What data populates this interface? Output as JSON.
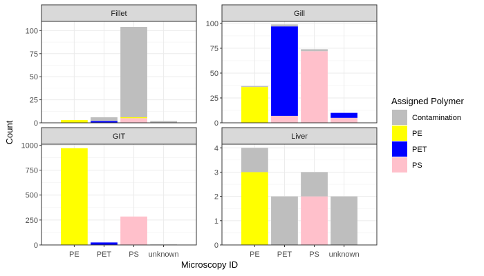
{
  "chart_data": {
    "type": "bar",
    "stacked": true,
    "facet_layout": "2x2",
    "shared_x": true,
    "grid": true,
    "xlabel": "Microscopy ID",
    "ylabel": "Count",
    "categories": [
      "PE",
      "PET",
      "PS",
      "unknown"
    ],
    "legend": {
      "title": "Assigned Polymer",
      "position": "right",
      "entries": [
        {
          "name": "Contamination",
          "color": "#BEBEBE"
        },
        {
          "name": "PE",
          "color": "#FFFF00"
        },
        {
          "name": "PET",
          "color": "#0000FF"
        },
        {
          "name": "PS",
          "color": "#FFC0CB"
        }
      ]
    },
    "stack_order": [
      "PS",
      "PET",
      "PE",
      "Contamination"
    ],
    "panels": [
      {
        "title": "Fillet",
        "ylim": [
          0,
          110
        ],
        "yticks": [
          0,
          25,
          50,
          75,
          100
        ],
        "bars": [
          {
            "category": "PE",
            "segments": {
              "PE": 3
            }
          },
          {
            "category": "PET",
            "segments": {
              "PET": 2,
              "Contamination": 4
            }
          },
          {
            "category": "PS",
            "segments": {
              "PS": 5,
              "PE": 1,
              "Contamination": 98
            }
          },
          {
            "category": "unknown",
            "segments": {
              "Contamination": 2
            }
          }
        ]
      },
      {
        "title": "Gill",
        "ylim": [
          0,
          102
        ],
        "yticks": [
          0,
          25,
          50,
          75,
          100
        ],
        "bars": [
          {
            "category": "PE",
            "segments": {
              "PE": 36,
              "Contamination": 1
            }
          },
          {
            "category": "PET",
            "segments": {
              "PS": 7,
              "PET": 90,
              "Contamination": 2
            }
          },
          {
            "category": "PS",
            "segments": {
              "PS": 72,
              "Contamination": 2
            }
          },
          {
            "category": "unknown",
            "segments": {
              "PS": 5,
              "PET": 5
            }
          }
        ]
      },
      {
        "title": "GIT",
        "ylim": [
          0,
          1010
        ],
        "yticks": [
          0,
          250,
          500,
          750,
          1000
        ],
        "bars": [
          {
            "category": "PE",
            "segments": {
              "PE": 970
            }
          },
          {
            "category": "PET",
            "segments": {
              "PET": 25
            }
          },
          {
            "category": "PS",
            "segments": {
              "PS": 285
            }
          },
          {
            "category": "unknown",
            "segments": {
              "Contamination": 5
            }
          }
        ]
      },
      {
        "title": "Liver",
        "ylim": [
          0,
          4.15
        ],
        "yticks": [
          0,
          1,
          2,
          3,
          4
        ],
        "bars": [
          {
            "category": "PE",
            "segments": {
              "PE": 3,
              "Contamination": 1
            }
          },
          {
            "category": "PET",
            "segments": {
              "Contamination": 2
            }
          },
          {
            "category": "PS",
            "segments": {
              "PS": 2,
              "Contamination": 1
            }
          },
          {
            "category": "unknown",
            "segments": {
              "Contamination": 2
            }
          }
        ]
      }
    ]
  }
}
